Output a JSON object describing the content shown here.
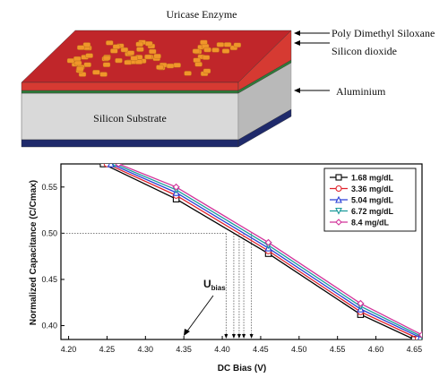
{
  "device": {
    "top_label": "Uricase Enzyme",
    "side_labels": [
      "Poly Dimethyl Siloxane",
      "Silicon dioxide",
      "Aluminium"
    ],
    "substrate_label": "Silicon Substrate",
    "colors": {
      "pdms": "#c0262a",
      "pdms_edge": "#d63a32",
      "sio2": "#2f7d3a",
      "silicon_front": "#d9d9d9",
      "silicon_side": "#b9b9b9",
      "aluminium": "#1f2a6b",
      "enzyme": "#f0962a"
    }
  },
  "chart_data": {
    "type": "line",
    "xlabel": "DC Bias (V)",
    "ylabel": "Normalized Capacitance (C/Cmax)",
    "xlim": [
      4.19,
      4.66
    ],
    "ylim": [
      0.385,
      0.575
    ],
    "xticks": [
      "4.20",
      "4.25",
      "4.30",
      "4.35",
      "4.40",
      "4.45",
      "4.50",
      "4.55",
      "4.60",
      "4.65"
    ],
    "yticks": [
      "0.40",
      "0.45",
      "0.50",
      "0.55"
    ],
    "grid": false,
    "legend_position": "top-right",
    "annotation": {
      "main": "U",
      "sub": "bias"
    },
    "reference_level": 0.5,
    "series": [
      {
        "name": "1.68 mg/dL",
        "color": "#000000",
        "marker": "square",
        "x": [
          4.245,
          4.34,
          4.46,
          4.58,
          4.65
        ],
        "y": [
          0.575,
          0.537,
          0.478,
          0.412,
          0.385
        ],
        "crossing_x": 4.405
      },
      {
        "name": "3.36 mg/dL",
        "color": "#e0202a",
        "marker": "circle",
        "x": [
          4.25,
          4.34,
          4.46,
          4.58,
          4.655
        ],
        "y": [
          0.575,
          0.541,
          0.481,
          0.415,
          0.386
        ],
        "crossing_x": 4.415
      },
      {
        "name": "5.04 mg/dL",
        "color": "#2a3fd6",
        "marker": "triangle",
        "x": [
          4.255,
          4.34,
          4.46,
          4.58,
          4.658
        ],
        "y": [
          0.575,
          0.544,
          0.484,
          0.418,
          0.387
        ],
        "crossing_x": 4.422
      },
      {
        "name": "6.72 mg/dL",
        "color": "#1a9a9a",
        "marker": "triangle-down",
        "x": [
          4.26,
          4.34,
          4.46,
          4.58,
          4.66
        ],
        "y": [
          0.575,
          0.547,
          0.487,
          0.421,
          0.388
        ],
        "crossing_x": 4.428
      },
      {
        "name": "8.4 mg/dL",
        "color": "#d2339a",
        "marker": "diamond",
        "x": [
          4.265,
          4.34,
          4.46,
          4.58,
          4.66
        ],
        "y": [
          0.575,
          0.55,
          0.49,
          0.424,
          0.39
        ],
        "crossing_x": 4.438
      }
    ]
  }
}
